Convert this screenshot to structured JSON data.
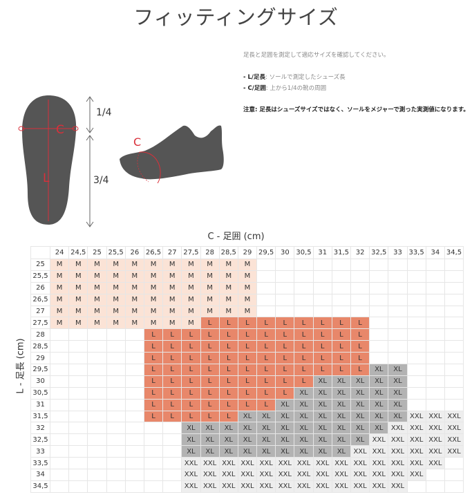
{
  "title": "フィッティングサイズ",
  "notes": {
    "intro": "足長と足囲を測定して適応サイズを確認してください。",
    "l_key": "- L/足長",
    "l_desc": ": ソールで測定したシューズ長",
    "c_key": "- C/足囲",
    "c_desc": ": 上から1/4の靴の周囲",
    "warning": "注意: 足長はシューズサイズではなく、ソールをメジャーで測った実測値になります。"
  },
  "illustration": {
    "c_mark": "C",
    "l_mark": "L",
    "quarter": "1/4",
    "three_quarter": "3/4",
    "shoe_c_mark": "C",
    "accent_color": "#d9303a",
    "shape_color": "#555555"
  },
  "table": {
    "x_label": "C - 足囲 (cm)",
    "y_label": "L - 足長 (cm)",
    "columns": [
      "24",
      "24,5",
      "25",
      "25,5",
      "26",
      "26,5",
      "27",
      "27,5",
      "28",
      "28,5",
      "29",
      "29,5",
      "30",
      "30,5",
      "31",
      "31,5",
      "32",
      "32,5",
      "33",
      "33,5",
      "34",
      "34,5"
    ],
    "colors": {
      "M": "#fbe3d6",
      "L": "#e8876a",
      "XL": "#b3b3b3",
      "XXL": "#eeeeee"
    },
    "rows": [
      {
        "label": "25",
        "cells": [
          "M",
          "M",
          "M",
          "M",
          "M",
          "M",
          "M",
          "M",
          "M",
          "M",
          "M",
          "",
          "",
          "",
          "",
          "",
          "",
          "",
          "",
          "",
          "",
          ""
        ]
      },
      {
        "label": "25,5",
        "cells": [
          "M",
          "M",
          "M",
          "M",
          "M",
          "M",
          "M",
          "M",
          "M",
          "M",
          "M",
          "",
          "",
          "",
          "",
          "",
          "",
          "",
          "",
          "",
          "",
          ""
        ]
      },
      {
        "label": "26",
        "cells": [
          "M",
          "M",
          "M",
          "M",
          "M",
          "M",
          "M",
          "M",
          "M",
          "M",
          "M",
          "",
          "",
          "",
          "",
          "",
          "",
          "",
          "",
          "",
          "",
          ""
        ]
      },
      {
        "label": "26,5",
        "cells": [
          "M",
          "M",
          "M",
          "M",
          "M",
          "M",
          "M",
          "M",
          "M",
          "M",
          "M",
          "",
          "",
          "",
          "",
          "",
          "",
          "",
          "",
          "",
          "",
          ""
        ]
      },
      {
        "label": "27",
        "cells": [
          "M",
          "M",
          "M",
          "M",
          "M",
          "M",
          "M",
          "M",
          "M",
          "M",
          "M",
          "",
          "",
          "",
          "",
          "",
          "",
          "",
          "",
          "",
          "",
          ""
        ]
      },
      {
        "label": "27,5",
        "cells": [
          "M",
          "M",
          "M",
          "M",
          "M",
          "M",
          "M",
          "M",
          "L",
          "L",
          "L",
          "L",
          "L",
          "L",
          "L",
          "L",
          "L",
          "",
          "",
          "",
          "",
          ""
        ]
      },
      {
        "label": "28",
        "cells": [
          "",
          "",
          "",
          "",
          "",
          "L",
          "L",
          "L",
          "L",
          "L",
          "L",
          "L",
          "L",
          "L",
          "L",
          "L",
          "L",
          "",
          "",
          "",
          "",
          ""
        ]
      },
      {
        "label": "28,5",
        "cells": [
          "",
          "",
          "",
          "",
          "",
          "L",
          "L",
          "L",
          "L",
          "L",
          "L",
          "L",
          "L",
          "L",
          "L",
          "L",
          "L",
          "",
          "",
          "",
          "",
          ""
        ]
      },
      {
        "label": "29",
        "cells": [
          "",
          "",
          "",
          "",
          "",
          "L",
          "L",
          "L",
          "L",
          "L",
          "L",
          "L",
          "L",
          "L",
          "L",
          "L",
          "L",
          "",
          "",
          "",
          "",
          ""
        ]
      },
      {
        "label": "29,5",
        "cells": [
          "",
          "",
          "",
          "",
          "",
          "L",
          "L",
          "L",
          "L",
          "L",
          "L",
          "L",
          "L",
          "L",
          "L",
          "L",
          "L",
          "XL",
          "XL",
          "",
          "",
          ""
        ]
      },
      {
        "label": "30",
        "cells": [
          "",
          "",
          "",
          "",
          "",
          "L",
          "L",
          "L",
          "L",
          "L",
          "L",
          "L",
          "L",
          "L",
          "XL",
          "XL",
          "XL",
          "XL",
          "XL",
          "",
          "",
          ""
        ]
      },
      {
        "label": "30,5",
        "cells": [
          "",
          "",
          "",
          "",
          "",
          "L",
          "L",
          "L",
          "L",
          "L",
          "L",
          "L",
          "L",
          "XL",
          "XL",
          "XL",
          "XL",
          "XL",
          "XL",
          "",
          "",
          ""
        ]
      },
      {
        "label": "31",
        "cells": [
          "",
          "",
          "",
          "",
          "",
          "L",
          "L",
          "L",
          "L",
          "L",
          "L",
          "L",
          "XL",
          "XL",
          "XL",
          "XL",
          "XL",
          "XL",
          "XL",
          "",
          "",
          ""
        ]
      },
      {
        "label": "31,5",
        "cells": [
          "",
          "",
          "",
          "",
          "",
          "L",
          "L",
          "L",
          "L",
          "L",
          "XL",
          "XL",
          "XL",
          "XL",
          "XL",
          "XL",
          "XL",
          "XL",
          "XL",
          "XXL",
          "XXL",
          "XXL"
        ]
      },
      {
        "label": "32",
        "cells": [
          "",
          "",
          "",
          "",
          "",
          "",
          "",
          "XL",
          "XL",
          "XL",
          "XL",
          "XL",
          "XL",
          "XL",
          "XL",
          "XL",
          "XL",
          "XL",
          "XXL",
          "XXL",
          "XXL",
          "XXL"
        ]
      },
      {
        "label": "32,5",
        "cells": [
          "",
          "",
          "",
          "",
          "",
          "",
          "",
          "XL",
          "XL",
          "XL",
          "XL",
          "XL",
          "XL",
          "XL",
          "XL",
          "XL",
          "XL",
          "XXL",
          "XXL",
          "XXL",
          "XXL",
          "XXL"
        ]
      },
      {
        "label": "33",
        "cells": [
          "",
          "",
          "",
          "",
          "",
          "",
          "",
          "XL",
          "XL",
          "XL",
          "XL",
          "XL",
          "XL",
          "XL",
          "XL",
          "XL",
          "XXL",
          "XXL",
          "XXL",
          "XXL",
          "XXL",
          "XXL"
        ]
      },
      {
        "label": "33,5",
        "cells": [
          "",
          "",
          "",
          "",
          "",
          "",
          "",
          "XXL",
          "XXL",
          "XXL",
          "XXL",
          "XXL",
          "XXL",
          "XXL",
          "XXL",
          "XXL",
          "XXL",
          "XXL",
          "XXL",
          "XXL",
          "XXL",
          ""
        ]
      },
      {
        "label": "34",
        "cells": [
          "",
          "",
          "",
          "",
          "",
          "",
          "",
          "XXL",
          "XXL",
          "XXL",
          "XXL",
          "XXL",
          "XXL",
          "XXL",
          "XXL",
          "XXL",
          "XXL",
          "XXL",
          "XXL",
          "XXL",
          "",
          ""
        ]
      },
      {
        "label": "34,5",
        "cells": [
          "",
          "",
          "",
          "",
          "",
          "",
          "",
          "XXL",
          "XXL",
          "XXL",
          "XXL",
          "XXL",
          "XXL",
          "XXL",
          "XXL",
          "XXL",
          "XXL",
          "XXL",
          "XXL",
          "",
          "",
          ""
        ]
      }
    ]
  }
}
